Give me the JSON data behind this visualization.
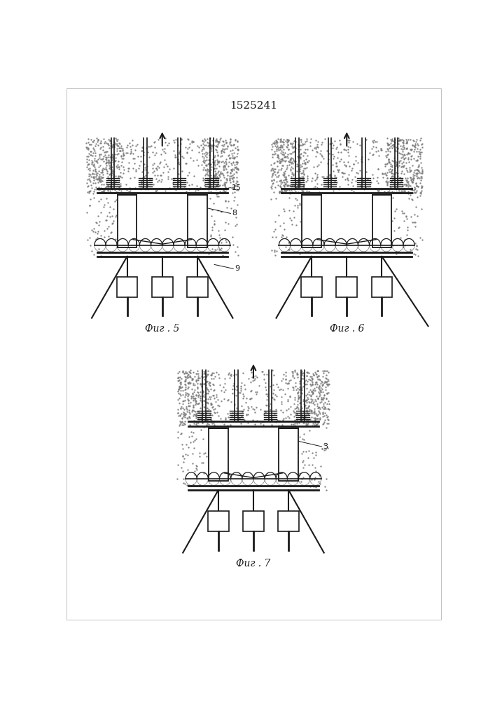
{
  "title": "1525241",
  "background_color": "#ffffff",
  "fig5_label": "Фиг . 5",
  "fig6_label": "Фиг . 6",
  "fig7_label": "Фиг . 7",
  "label_15": "15",
  "label_8": "8",
  "label_9": "9",
  "label_3": "3",
  "line_color": "#1a1a1a",
  "seed5": 101,
  "seed6": 202,
  "seed7": 303
}
